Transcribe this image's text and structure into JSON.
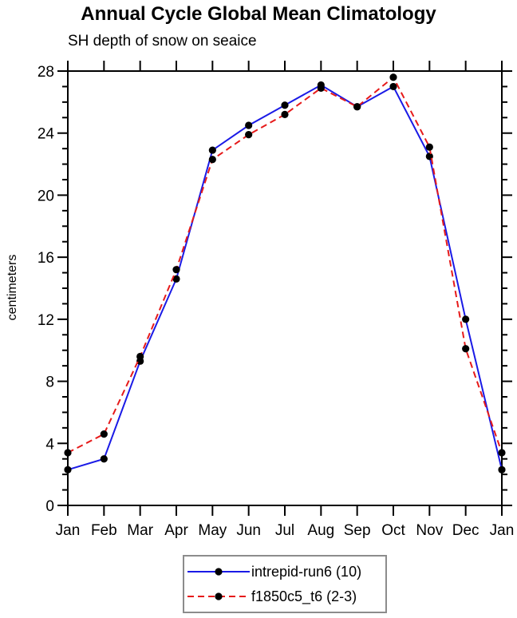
{
  "chart_data": {
    "type": "line",
    "title": "Annual Cycle Global Mean Climatology",
    "subtitle": "SH depth of snow on seaice",
    "xlabel": "",
    "ylabel": "centimeters",
    "categories": [
      "Jan",
      "Feb",
      "Mar",
      "Apr",
      "May",
      "Jun",
      "Jul",
      "Aug",
      "Sep",
      "Oct",
      "Nov",
      "Dec",
      "Jan"
    ],
    "ylim": [
      0,
      28
    ],
    "y_major_ticks": [
      0,
      4,
      8,
      12,
      16,
      20,
      24,
      28
    ],
    "y_minor_step": 1,
    "grid": false,
    "legend_position": "bottom-center",
    "frame_color": "#000000",
    "marker_shape": "circle",
    "series": [
      {
        "name": "intrepid-run6 (10)",
        "color": "#1a1ae6",
        "line_style": "solid",
        "marker_color": "#000000",
        "values": [
          2.3,
          3.0,
          9.3,
          14.6,
          22.9,
          24.5,
          25.8,
          27.1,
          25.7,
          27.0,
          22.5,
          12.0,
          2.3
        ]
      },
      {
        "name": "f1850c5_t6 (2-3)",
        "color": "#e61a1a",
        "line_style": "dashed",
        "marker_color": "#000000",
        "values": [
          3.4,
          4.6,
          9.6,
          15.2,
          22.3,
          23.9,
          25.2,
          26.9,
          25.7,
          27.6,
          23.1,
          10.1,
          3.4
        ]
      }
    ]
  }
}
